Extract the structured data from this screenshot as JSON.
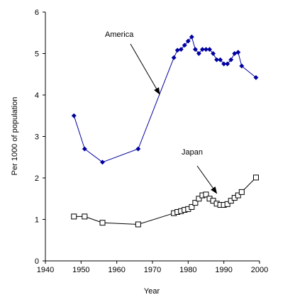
{
  "chart_data": {
    "type": "line",
    "title": "",
    "xlabel": "Year",
    "ylabel": "Per 1000 of population",
    "xlim": [
      1940,
      2000
    ],
    "ylim": [
      0,
      6
    ],
    "x_ticks": [
      1940,
      1950,
      1960,
      1970,
      1980,
      1990,
      2000
    ],
    "y_ticks": [
      0,
      1,
      2,
      3,
      4,
      5,
      6
    ],
    "grid": false,
    "legend": "none",
    "series": [
      {
        "name": "America",
        "color": "#0000a0",
        "marker": "filled-diamond",
        "points": [
          [
            1948,
            3.5
          ],
          [
            1951,
            2.7
          ],
          [
            1956,
            2.38
          ],
          [
            1966,
            2.7
          ],
          [
            1976,
            4.9
          ],
          [
            1977,
            5.08
          ],
          [
            1978,
            5.1
          ],
          [
            1979,
            5.2
          ],
          [
            1980,
            5.3
          ],
          [
            1981,
            5.4
          ],
          [
            1982,
            5.1
          ],
          [
            1983,
            5.0
          ],
          [
            1984,
            5.1
          ],
          [
            1985,
            5.1
          ],
          [
            1986,
            5.1
          ],
          [
            1987,
            5.0
          ],
          [
            1988,
            4.85
          ],
          [
            1989,
            4.85
          ],
          [
            1990,
            4.75
          ],
          [
            1991,
            4.75
          ],
          [
            1992,
            4.85
          ],
          [
            1993,
            5.0
          ],
          [
            1994,
            5.03
          ],
          [
            1995,
            4.7
          ],
          [
            1999,
            4.42
          ]
        ]
      },
      {
        "name": "Japan",
        "color": "#000000",
        "marker": "open-square",
        "points": [
          [
            1948,
            1.07
          ],
          [
            1951,
            1.07
          ],
          [
            1956,
            0.92
          ],
          [
            1966,
            0.88
          ],
          [
            1976,
            1.15
          ],
          [
            1977,
            1.18
          ],
          [
            1978,
            1.2
          ],
          [
            1979,
            1.23
          ],
          [
            1980,
            1.25
          ],
          [
            1981,
            1.3
          ],
          [
            1982,
            1.4
          ],
          [
            1983,
            1.5
          ],
          [
            1984,
            1.58
          ],
          [
            1985,
            1.6
          ],
          [
            1986,
            1.5
          ],
          [
            1987,
            1.45
          ],
          [
            1988,
            1.38
          ],
          [
            1989,
            1.35
          ],
          [
            1990,
            1.35
          ],
          [
            1991,
            1.37
          ],
          [
            1992,
            1.45
          ],
          [
            1993,
            1.52
          ],
          [
            1994,
            1.58
          ],
          [
            1995,
            1.66
          ],
          [
            1999,
            2.01
          ]
        ]
      }
    ],
    "annotations": [
      {
        "text": "America",
        "arrow_to": [
          1972,
          4.02
        ]
      },
      {
        "text": "Japan",
        "arrow_to": [
          1988,
          1.63
        ]
      }
    ]
  }
}
